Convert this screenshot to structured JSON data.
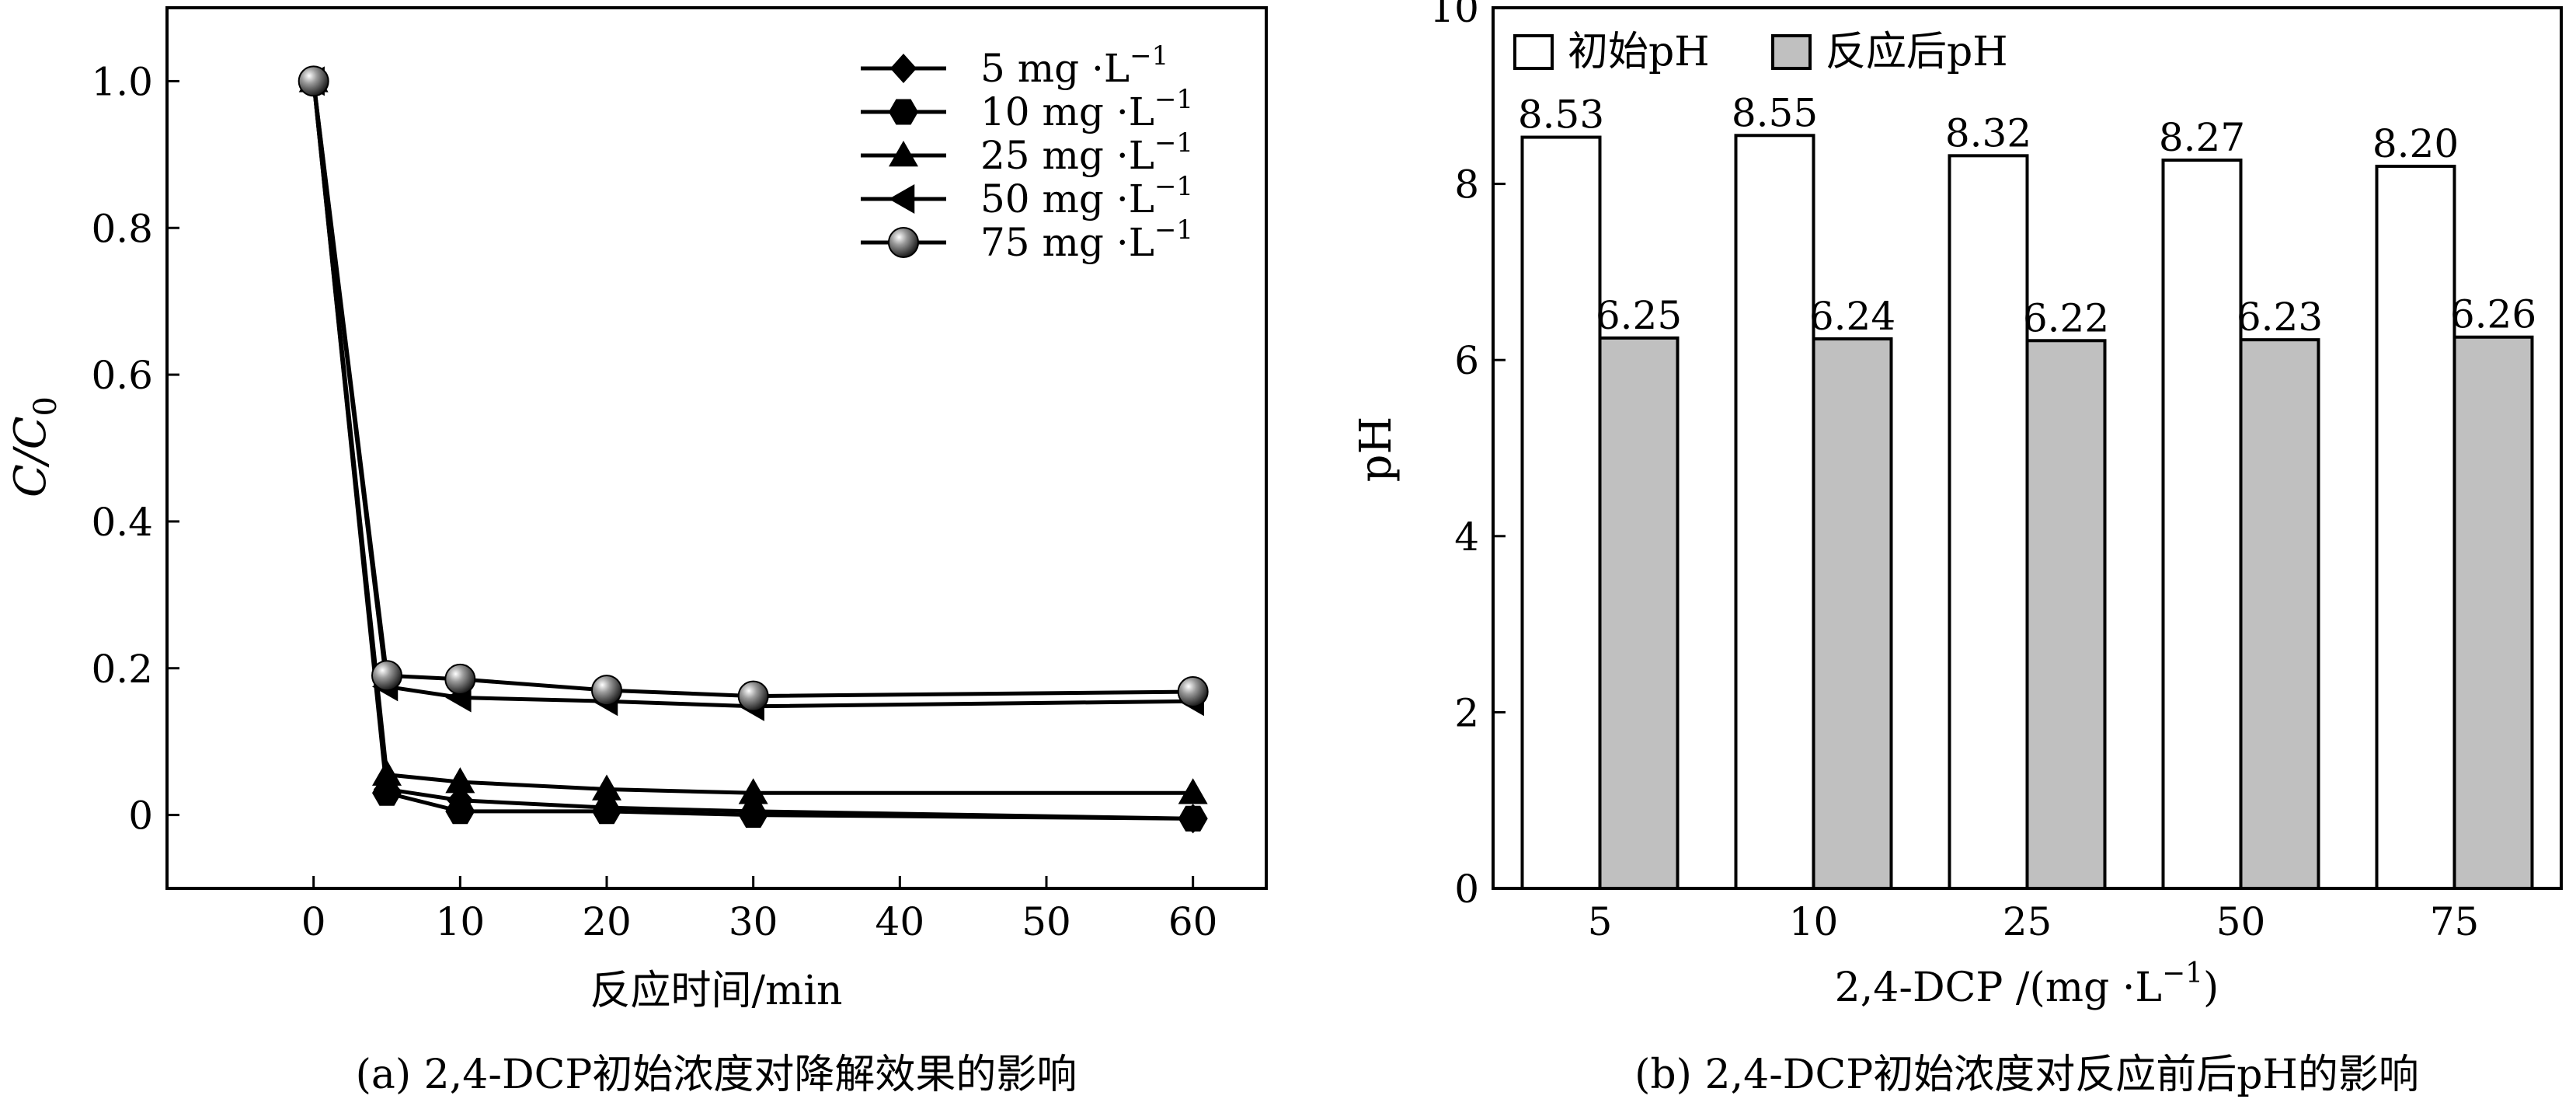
{
  "chart_data": [
    {
      "type": "line",
      "caption": "(a) 2,4-DCP初始浓度对降解效果的影响",
      "xlabel": "反应时间/min",
      "ylabel": "C/C",
      "ylabel_sub": "0",
      "xlim": [
        -10,
        65
      ],
      "ylim": [
        -0.1,
        1.1
      ],
      "xticks": [
        0,
        10,
        20,
        30,
        40,
        50,
        60
      ],
      "yticks": [
        0,
        0.2,
        0.4,
        0.6,
        0.8,
        1.0
      ],
      "ytick_labels": [
        "0",
        "0.2",
        "0.4",
        "0.6",
        "0.8",
        "1.0"
      ],
      "legend_position": "top-right",
      "x": [
        0,
        5,
        10,
        20,
        30,
        60
      ],
      "series": [
        {
          "name": "5 mg ·L",
          "sup": "−1",
          "marker": "diamond",
          "values": [
            1.0,
            0.035,
            0.02,
            0.01,
            0.005,
            -0.005
          ]
        },
        {
          "name": "10 mg ·L",
          "sup": "−1",
          "marker": "hexagon",
          "values": [
            1.0,
            0.03,
            0.005,
            0.005,
            0.0,
            -0.005
          ]
        },
        {
          "name": "25 mg ·L",
          "sup": "−1",
          "marker": "triangle-up",
          "values": [
            1.0,
            0.055,
            0.045,
            0.035,
            0.03,
            0.03
          ]
        },
        {
          "name": "50 mg ·L",
          "sup": "−1",
          "marker": "triangle-left",
          "values": [
            1.0,
            0.175,
            0.16,
            0.155,
            0.148,
            0.155
          ]
        },
        {
          "name": "75 mg ·L",
          "sup": "−1",
          "marker": "sphere",
          "values": [
            1.0,
            0.19,
            0.185,
            0.17,
            0.162,
            0.168
          ]
        }
      ]
    },
    {
      "type": "bar",
      "caption": "(b) 2,4-DCP初始浓度对反应前后pH的影响",
      "xlabel": "2,4-DCP /(mg ·L",
      "xlabel_sup": "−1",
      "xlabel_end": ")",
      "ylabel": "pH",
      "ylim": [
        0,
        10
      ],
      "yticks": [
        0,
        2,
        4,
        6,
        8,
        10
      ],
      "ytick_labels": [
        "0",
        "2",
        "4",
        "6",
        "8",
        "10"
      ],
      "categories": [
        "5",
        "10",
        "25",
        "50",
        "75"
      ],
      "legend_position": "top-left",
      "series": [
        {
          "name": "初始pH",
          "color": "#ffffff",
          "values": [
            8.53,
            8.55,
            8.32,
            8.27,
            8.2
          ],
          "labels": [
            "8.53",
            "8.55",
            "8.32",
            "8.27",
            "8.20"
          ]
        },
        {
          "name": "反应后pH",
          "color": "#c0c0c0",
          "values": [
            6.25,
            6.24,
            6.22,
            6.23,
            6.26
          ],
          "labels": [
            "6.25",
            "6.24",
            "6.22",
            "6.23",
            "6.26"
          ]
        }
      ]
    }
  ]
}
